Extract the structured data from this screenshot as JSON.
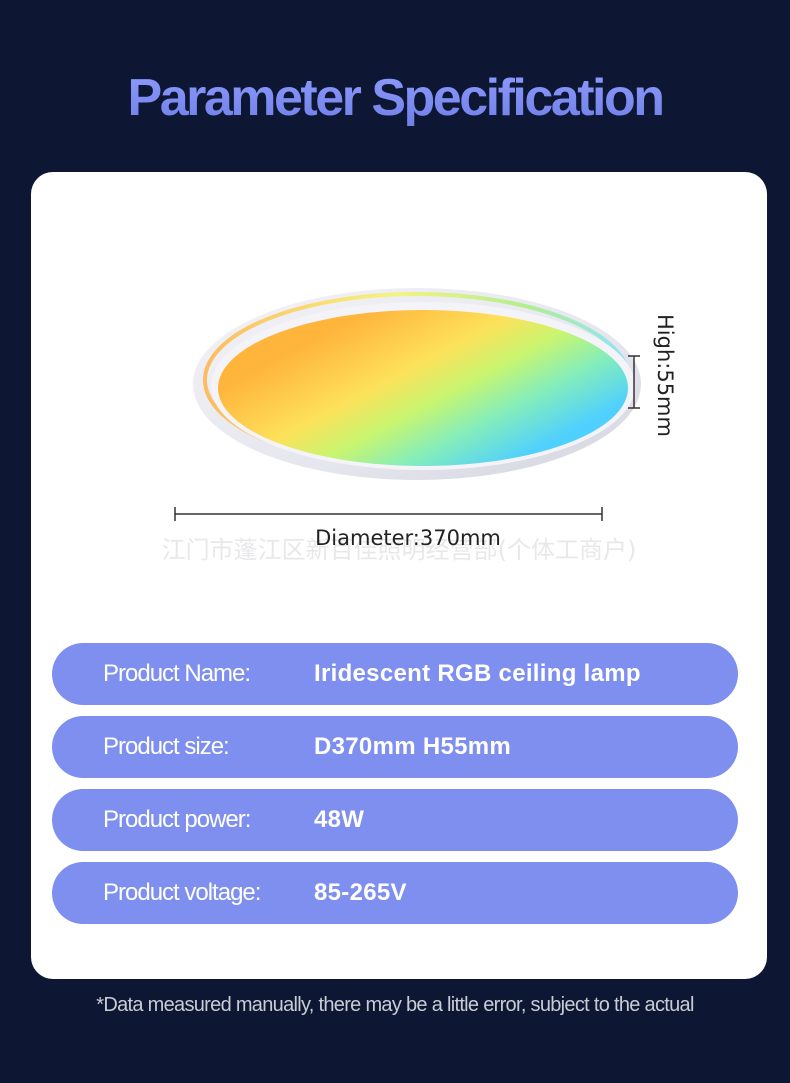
{
  "title": "Parameter Specification",
  "watermark": "江门市蓬江区新百佳照明经营部(个体工商户)",
  "dimensions": {
    "diameter_label": "Diameter:370mm",
    "height_label": "High:55mm"
  },
  "specs": [
    {
      "label": "Product Name:",
      "value": "Iridescent RGB ceiling lamp"
    },
    {
      "label": "Product size:",
      "value": "D370mm H55mm"
    },
    {
      "label": "Product power:",
      "value": "48W"
    },
    {
      "label": "Product voltage:",
      "value": "85-265V"
    }
  ],
  "footnote": "*Data measured manually, there may be a little error, subject to the actual",
  "colors": {
    "background": "#0d1733",
    "accent": "#7f8fef",
    "card": "#ffffff"
  }
}
